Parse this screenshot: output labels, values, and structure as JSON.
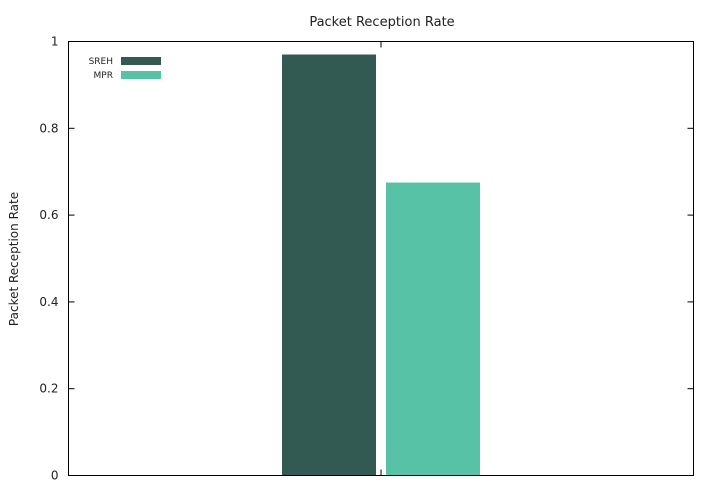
{
  "chart_data": {
    "type": "bar",
    "title": "Packet Reception Rate",
    "xlabel": "",
    "ylabel": "Packet Reception Rate",
    "ylim": [
      0,
      1
    ],
    "yticks": [
      "0",
      "0.2",
      "0.4",
      "0.6",
      "0.8",
      "1"
    ],
    "grid": false,
    "legend_position": "top-left",
    "categories": [
      ""
    ],
    "series": [
      {
        "name": "SREH",
        "values": [
          0.97
        ],
        "color": "#325a52"
      },
      {
        "name": "MPR",
        "values": [
          0.675
        ],
        "color": "#57c2a5"
      }
    ]
  }
}
